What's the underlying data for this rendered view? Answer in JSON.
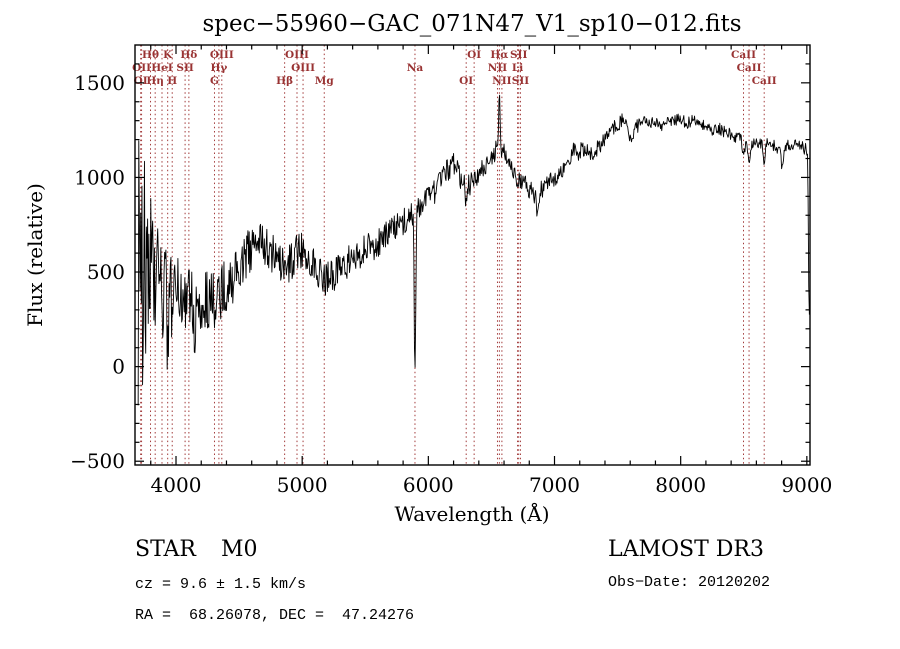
{
  "page": {
    "background": "#ffffff"
  },
  "footer": {
    "class_label": "STAR",
    "subclass_label": "M0",
    "survey_label": "LAMOST DR3",
    "cz_line": "cz = 9.6 ± 1.5 km/s",
    "obs_date_line": "Obs−Date: 20120202",
    "coord_line": "RA =  68.26078, DEC =  47.24276"
  },
  "chart_data": {
    "type": "line",
    "title": "spec−55960−GAC_071N47_V1_sp10−012.fits",
    "xlabel": "Wavelength (Å)",
    "ylabel": "Flux (relative)",
    "xlim": [
      3675,
      9025
    ],
    "ylim": [
      -520,
      1700
    ],
    "x_ticks": [
      4000,
      5000,
      6000,
      7000,
      8000,
      9000
    ],
    "y_ticks": [
      -500,
      0,
      500,
      1000,
      1500
    ],
    "x_minor_step": 200,
    "y_minor_step": 100,
    "grid": false,
    "legend": false,
    "trace_color": "#000000",
    "marker_line_color": "#a23b3b",
    "spectral_lines": [
      {
        "label": "OI",
        "wavelength": 3720,
        "row": 2
      },
      {
        "label": "OII",
        "wavelength": 3727,
        "row": 1
      },
      {
        "label": "Hθ",
        "wavelength": 3798,
        "row": 0
      },
      {
        "label": "Hη",
        "wavelength": 3835,
        "row": 2
      },
      {
        "label": "HeI",
        "wavelength": 3889,
        "row": 1
      },
      {
        "label": "K",
        "wavelength": 3934,
        "row": 0
      },
      {
        "label": "H",
        "wavelength": 3970,
        "row": 2
      },
      {
        "label": "SII",
        "wavelength": 4072,
        "row": 1
      },
      {
        "label": "Hδ",
        "wavelength": 4102,
        "row": 0
      },
      {
        "label": "G",
        "wavelength": 4305,
        "row": 2
      },
      {
        "label": "Hγ",
        "wavelength": 4340,
        "row": 1
      },
      {
        "label": "OIII",
        "wavelength": 4363,
        "row": 0
      },
      {
        "label": "Hβ",
        "wavelength": 4861,
        "row": 2
      },
      {
        "label": "OIII",
        "wavelength": 4959,
        "row": 0
      },
      {
        "label": "OIII",
        "wavelength": 5007,
        "row": 1
      },
      {
        "label": "Mg",
        "wavelength": 5175,
        "row": 2
      },
      {
        "label": "Na",
        "wavelength": 5894,
        "row": 1
      },
      {
        "label": "OI",
        "wavelength": 6300,
        "row": 2
      },
      {
        "label": "OI",
        "wavelength": 6363,
        "row": 0
      },
      {
        "label": "NII",
        "wavelength": 6548,
        "row": 1
      },
      {
        "label": "Hα",
        "wavelength": 6563,
        "row": 0
      },
      {
        "label": "NII",
        "wavelength": 6583,
        "row": 2
      },
      {
        "label": "Li",
        "wavelength": 6707,
        "row": 1
      },
      {
        "label": "SII",
        "wavelength": 6716,
        "row": 0
      },
      {
        "label": "SII",
        "wavelength": 6730,
        "row": 2
      },
      {
        "label": "CaII",
        "wavelength": 8498,
        "row": 0
      },
      {
        "label": "CaII",
        "wavelength": 8542,
        "row": 1
      },
      {
        "label": "CaII",
        "wavelength": 8662,
        "row": 2
      }
    ],
    "spectrum": {
      "range": [
        3700,
        9020
      ],
      "sample_step": 5,
      "continuum": [
        [
          3700,
          560
        ],
        [
          3740,
          540
        ],
        [
          3780,
          500
        ],
        [
          3820,
          460
        ],
        [
          3860,
          420
        ],
        [
          3900,
          390
        ],
        [
          3950,
          370
        ],
        [
          4000,
          360
        ],
        [
          4050,
          375
        ],
        [
          4100,
          385
        ],
        [
          4150,
          350
        ],
        [
          4200,
          330
        ],
        [
          4250,
          340
        ],
        [
          4300,
          360
        ],
        [
          4350,
          390
        ],
        [
          4400,
          430
        ],
        [
          4450,
          470
        ],
        [
          4500,
          520
        ],
        [
          4550,
          570
        ],
        [
          4600,
          625
        ],
        [
          4650,
          660
        ],
        [
          4700,
          645
        ],
        [
          4750,
          605
        ],
        [
          4800,
          550
        ],
        [
          4861,
          525
        ],
        [
          4900,
          555
        ],
        [
          4950,
          590
        ],
        [
          5000,
          620
        ],
        [
          5050,
          585
        ],
        [
          5100,
          540
        ],
        [
          5175,
          465
        ],
        [
          5225,
          470
        ],
        [
          5275,
          500
        ],
        [
          5350,
          545
        ],
        [
          5450,
          590
        ],
        [
          5550,
          635
        ],
        [
          5650,
          680
        ],
        [
          5750,
          740
        ],
        [
          5850,
          800
        ],
        [
          5894,
          820
        ],
        [
          5950,
          855
        ],
        [
          6000,
          885
        ],
        [
          6050,
          925
        ],
        [
          6100,
          975
        ],
        [
          6150,
          1035
        ],
        [
          6200,
          1065
        ],
        [
          6250,
          1005
        ],
        [
          6300,
          945
        ],
        [
          6350,
          975
        ],
        [
          6400,
          1015
        ],
        [
          6450,
          1060
        ],
        [
          6500,
          1105
        ],
        [
          6540,
          1145
        ],
        [
          6563,
          1165
        ],
        [
          6600,
          1135
        ],
        [
          6650,
          1065
        ],
        [
          6700,
          1005
        ],
        [
          6750,
          975
        ],
        [
          6800,
          935
        ],
        [
          6860,
          905
        ],
        [
          6900,
          940
        ],
        [
          6950,
          970
        ],
        [
          7000,
          990
        ],
        [
          7050,
          1025
        ],
        [
          7100,
          1090
        ],
        [
          7150,
          1140
        ],
        [
          7200,
          1170
        ],
        [
          7250,
          1140
        ],
        [
          7300,
          1120
        ],
        [
          7350,
          1160
        ],
        [
          7400,
          1205
        ],
        [
          7450,
          1245
        ],
        [
          7500,
          1285
        ],
        [
          7550,
          1305
        ],
        [
          7600,
          1290
        ],
        [
          7650,
          1270
        ],
        [
          7700,
          1285
        ],
        [
          7750,
          1300
        ],
        [
          7800,
          1290
        ],
        [
          7850,
          1280
        ],
        [
          7900,
          1300
        ],
        [
          7950,
          1310
        ],
        [
          8000,
          1300
        ],
        [
          8050,
          1290
        ],
        [
          8100,
          1300
        ],
        [
          8150,
          1290
        ],
        [
          8200,
          1270
        ],
        [
          8250,
          1245
        ],
        [
          8300,
          1260
        ],
        [
          8350,
          1240
        ],
        [
          8400,
          1230
        ],
        [
          8450,
          1210
        ],
        [
          8500,
          1190
        ],
        [
          8550,
          1175
        ],
        [
          8600,
          1185
        ],
        [
          8650,
          1170
        ],
        [
          8700,
          1190
        ],
        [
          8750,
          1165
        ],
        [
          8800,
          1140
        ],
        [
          8850,
          1170
        ],
        [
          8900,
          1180
        ],
        [
          8950,
          1160
        ],
        [
          9000,
          1150
        ],
        [
          9006,
          1130
        ],
        [
          9010,
          900
        ],
        [
          9014,
          500
        ],
        [
          9018,
          260
        ]
      ],
      "noise_amplitude": [
        [
          3700,
          880
        ],
        [
          3730,
          720
        ],
        [
          3760,
          600
        ],
        [
          3800,
          480
        ],
        [
          3850,
          360
        ],
        [
          3900,
          280
        ],
        [
          3950,
          240
        ],
        [
          4000,
          220
        ],
        [
          4100,
          200
        ],
        [
          4200,
          175
        ],
        [
          4300,
          160
        ],
        [
          4400,
          145
        ],
        [
          4600,
          125
        ],
        [
          4800,
          110
        ],
        [
          5000,
          100
        ],
        [
          5200,
          92
        ],
        [
          5400,
          85
        ],
        [
          5600,
          80
        ],
        [
          5800,
          74
        ],
        [
          6000,
          68
        ],
        [
          6200,
          62
        ],
        [
          6400,
          58
        ],
        [
          6563,
          55
        ],
        [
          6800,
          50
        ],
        [
          7000,
          47
        ],
        [
          7200,
          44
        ],
        [
          7500,
          40
        ],
        [
          7800,
          35
        ],
        [
          8100,
          32
        ],
        [
          8400,
          31
        ],
        [
          8700,
          32
        ],
        [
          9000,
          34
        ],
        [
          9018,
          20
        ]
      ],
      "features": [
        {
          "name": "CaK-absorption",
          "center": 3934,
          "amp": -300,
          "width": 6
        },
        {
          "name": "Hdelta-absorption",
          "center": 4150,
          "amp": -420,
          "width": 5
        },
        {
          "name": "NaD-absorption",
          "center": 5894,
          "amp": -880,
          "width": 6
        },
        {
          "name": "OI-6300-absorption",
          "center": 6300,
          "amp": -100,
          "width": 6
        },
        {
          "name": "Halpha-emission",
          "center": 6563,
          "amp": 240,
          "width": 5
        },
        {
          "name": "telluric-B-band",
          "center": 6868,
          "amp": -120,
          "width": 9
        },
        {
          "name": "dip-7190",
          "center": 7190,
          "amp": -70,
          "width": 10
        },
        {
          "name": "telluric-A-band",
          "center": 7605,
          "amp": -110,
          "width": 14
        },
        {
          "name": "CaII-8498-absorption",
          "center": 8498,
          "amp": -90,
          "width": 7
        },
        {
          "name": "CaII-8542-absorption",
          "center": 8542,
          "amp": -115,
          "width": 7
        },
        {
          "name": "CaII-8662-absorption",
          "center": 8662,
          "amp": -105,
          "width": 7
        },
        {
          "name": "dip-8805",
          "center": 8805,
          "amp": -90,
          "width": 9
        }
      ]
    }
  }
}
